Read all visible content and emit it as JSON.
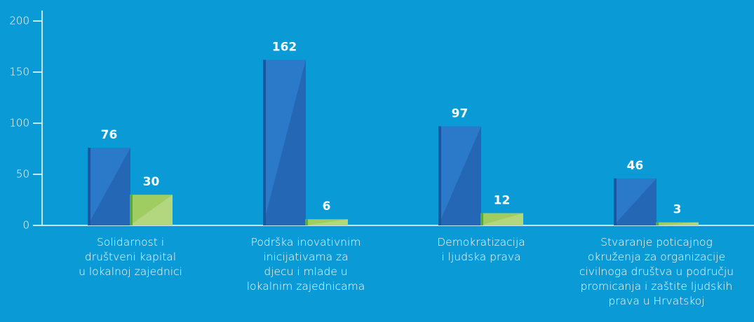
{
  "chart_data": {
    "type": "bar",
    "categories": [
      "Solidarnost i\ndruštveni kapital\nu lokalnoj zajednici",
      "Podrška inovativnim\ninicijativama za\ndjecu i mlade u\nlokalnim zajednicama",
      "Demokratizacija\ni ljudska prava",
      "Stvaranje poticajnog\nokruženja za organizacije\ncivilnoga društva u području\npromicanja i zaštite ljudskih\nprava u Hrvatskoj"
    ],
    "series": [
      {
        "color": "#2b79c9",
        "values": [
          76,
          162,
          97,
          46
        ]
      },
      {
        "color": "#9fcd62",
        "values": [
          30,
          6,
          12,
          3
        ]
      }
    ],
    "ylim": [
      0,
      200
    ],
    "yticks": [
      0,
      50,
      100,
      150,
      200
    ],
    "grid": false
  }
}
